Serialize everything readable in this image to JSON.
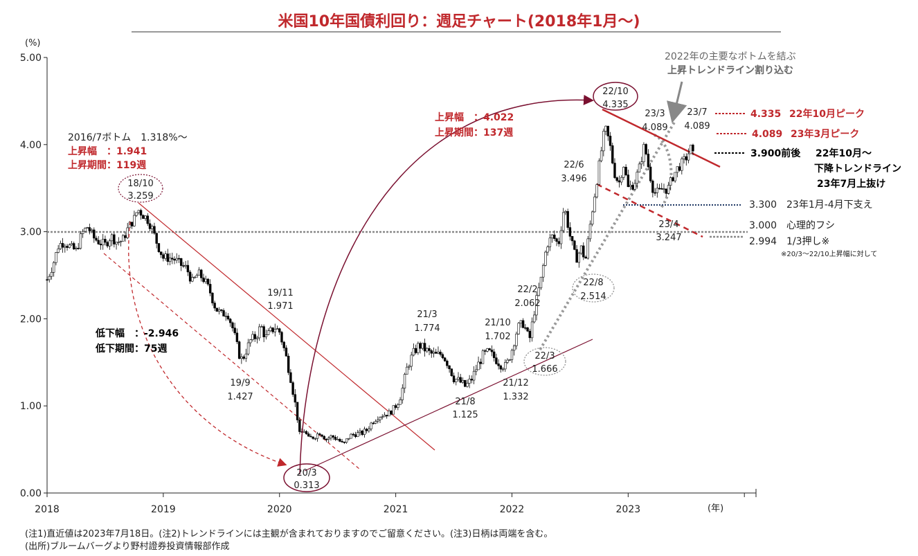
{
  "chart_data": {
    "type": "candlestick",
    "title": "米国10年国債利回り：週足チャート(2018年1月～)",
    "ylabel": "(%)",
    "xlabel": "(年)",
    "ylim": [
      0,
      5
    ],
    "xlim": [
      2018.0,
      2024.1
    ],
    "yticks": [
      "0.00",
      "1.00",
      "2.00",
      "3.00",
      "4.00",
      "5.00"
    ],
    "xticks": [
      {
        "label": "2018",
        "x": 2018.0
      },
      {
        "label": "2019",
        "x": 2019.0
      },
      {
        "label": "2020",
        "x": 2020.0
      },
      {
        "label": "2021",
        "x": 2021.0
      },
      {
        "label": "2022",
        "x": 2022.0
      },
      {
        "label": "2023",
        "x": 2023.0
      }
    ],
    "price_path": [
      [
        2018.0,
        2.45
      ],
      [
        2018.05,
        2.62
      ],
      [
        2018.1,
        2.85
      ],
      [
        2018.15,
        2.88
      ],
      [
        2018.2,
        2.82
      ],
      [
        2018.25,
        2.78
      ],
      [
        2018.3,
        2.98
      ],
      [
        2018.35,
        3.06
      ],
      [
        2018.4,
        2.93
      ],
      [
        2018.45,
        2.88
      ],
      [
        2018.5,
        2.85
      ],
      [
        2018.55,
        2.95
      ],
      [
        2018.6,
        2.88
      ],
      [
        2018.65,
        2.9
      ],
      [
        2018.7,
        3.05
      ],
      [
        2018.75,
        3.15
      ],
      [
        2018.78,
        3.259
      ],
      [
        2018.82,
        3.2
      ],
      [
        2018.86,
        3.15
      ],
      [
        2018.9,
        3.05
      ],
      [
        2018.95,
        2.85
      ],
      [
        2019.0,
        2.7
      ],
      [
        2019.05,
        2.7
      ],
      [
        2019.1,
        2.68
      ],
      [
        2019.15,
        2.62
      ],
      [
        2019.2,
        2.58
      ],
      [
        2019.25,
        2.42
      ],
      [
        2019.3,
        2.52
      ],
      [
        2019.35,
        2.45
      ],
      [
        2019.4,
        2.32
      ],
      [
        2019.45,
        2.12
      ],
      [
        2019.5,
        2.05
      ],
      [
        2019.55,
        2.08
      ],
      [
        2019.6,
        1.88
      ],
      [
        2019.65,
        1.6
      ],
      [
        2019.68,
        1.52
      ],
      [
        2019.7,
        1.6
      ],
      [
        2019.75,
        1.75
      ],
      [
        2019.8,
        1.8
      ],
      [
        2019.84,
        1.92
      ],
      [
        2019.88,
        1.78
      ],
      [
        2019.92,
        1.85
      ],
      [
        2019.96,
        1.9
      ],
      [
        2020.0,
        1.85
      ],
      [
        2020.05,
        1.6
      ],
      [
        2020.1,
        1.3
      ],
      [
        2020.15,
        0.9
      ],
      [
        2020.18,
        0.6
      ],
      [
        2020.2,
        0.75
      ],
      [
        2020.25,
        0.62
      ],
      [
        2020.3,
        0.65
      ],
      [
        2020.35,
        0.7
      ],
      [
        2020.4,
        0.62
      ],
      [
        2020.45,
        0.65
      ],
      [
        2020.5,
        0.62
      ],
      [
        2020.55,
        0.55
      ],
      [
        2020.6,
        0.65
      ],
      [
        2020.65,
        0.68
      ],
      [
        2020.7,
        0.68
      ],
      [
        2020.75,
        0.72
      ],
      [
        2020.8,
        0.82
      ],
      [
        2020.85,
        0.88
      ],
      [
        2020.9,
        0.9
      ],
      [
        2020.95,
        0.92
      ],
      [
        2021.0,
        1.0
      ],
      [
        2021.05,
        1.15
      ],
      [
        2021.1,
        1.45
      ],
      [
        2021.15,
        1.6
      ],
      [
        2021.2,
        1.7
      ],
      [
        2021.25,
        1.65
      ],
      [
        2021.3,
        1.6
      ],
      [
        2021.35,
        1.58
      ],
      [
        2021.4,
        1.6
      ],
      [
        2021.45,
        1.48
      ],
      [
        2021.5,
        1.32
      ],
      [
        2021.55,
        1.28
      ],
      [
        2021.6,
        1.22
      ],
      [
        2021.65,
        1.3
      ],
      [
        2021.7,
        1.45
      ],
      [
        2021.75,
        1.58
      ],
      [
        2021.8,
        1.62
      ],
      [
        2021.85,
        1.55
      ],
      [
        2021.9,
        1.48
      ],
      [
        2021.95,
        1.45
      ],
      [
        2022.0,
        1.65
      ],
      [
        2022.05,
        1.9
      ],
      [
        2022.1,
        1.95
      ],
      [
        2022.15,
        1.75
      ],
      [
        2022.2,
        2.15
      ],
      [
        2022.25,
        2.45
      ],
      [
        2022.3,
        2.85
      ],
      [
        2022.35,
        2.95
      ],
      [
        2022.4,
        2.85
      ],
      [
        2022.45,
        3.3
      ],
      [
        2022.5,
        2.95
      ],
      [
        2022.55,
        2.68
      ],
      [
        2022.6,
        2.82
      ],
      [
        2022.63,
        2.65
      ],
      [
        2022.68,
        3.15
      ],
      [
        2022.72,
        3.5
      ],
      [
        2022.76,
        3.85
      ],
      [
        2022.8,
        4.2
      ],
      [
        2022.84,
        4.02
      ],
      [
        2022.88,
        3.68
      ],
      [
        2022.92,
        3.55
      ],
      [
        2022.96,
        3.78
      ],
      [
        2023.0,
        3.5
      ],
      [
        2023.05,
        3.55
      ],
      [
        2023.1,
        3.75
      ],
      [
        2023.14,
        4.0
      ],
      [
        2023.18,
        3.7
      ],
      [
        2023.22,
        3.45
      ],
      [
        2023.26,
        3.45
      ],
      [
        2023.3,
        3.5
      ],
      [
        2023.34,
        3.48
      ],
      [
        2023.38,
        3.62
      ],
      [
        2023.42,
        3.72
      ],
      [
        2023.46,
        3.78
      ],
      [
        2023.5,
        3.85
      ],
      [
        2023.54,
        3.96
      ],
      [
        2023.57,
        3.82
      ]
    ],
    "annotations": [
      {
        "label": "18/10",
        "value": "3.259",
        "date": 2018.78,
        "y": 3.259
      },
      {
        "label": "19/9",
        "value": "1.427",
        "date": 2019.68,
        "y": 1.427
      },
      {
        "label": "19/11",
        "value": "1.971",
        "date": 2019.84,
        "y": 1.971
      },
      {
        "label": "20/3",
        "value": "0.313",
        "date": 2020.18,
        "y": 0.313
      },
      {
        "label": "21/3",
        "value": "1.774",
        "date": 2021.22,
        "y": 1.774
      },
      {
        "label": "21/8",
        "value": "1.125",
        "date": 2021.6,
        "y": 1.125
      },
      {
        "label": "21/10",
        "value": "1.702",
        "date": 2021.8,
        "y": 1.702
      },
      {
        "label": "21/12",
        "value": "1.332",
        "date": 2021.95,
        "y": 1.332
      },
      {
        "label": "22/2",
        "value": "2.062",
        "date": 2022.1,
        "y": 2.062
      },
      {
        "label": "22/3",
        "value": "1.666",
        "date": 2022.2,
        "y": 1.666
      },
      {
        "label": "22/6",
        "value": "3.496",
        "date": 2022.45,
        "y": 3.496
      },
      {
        "label": "22/8",
        "value": "2.514",
        "date": 2022.63,
        "y": 2.514
      },
      {
        "label": "22/10",
        "value": "4.335",
        "date": 2022.8,
        "y": 4.335
      },
      {
        "label": "23/3",
        "value": "4.089",
        "date": 2023.14,
        "y": 4.089
      },
      {
        "label": "23/4",
        "value": "3.247",
        "date": 2023.26,
        "y": 3.247
      },
      {
        "label": "23/7",
        "value": "4.089",
        "date": 2023.54,
        "y": 4.089
      }
    ],
    "text_blocks": {
      "bottom_2016": "2016/7ボトム　1.318%～",
      "rise1_amount": "上昇幅　：1.941",
      "rise1_period": "上昇期間：119週",
      "fall_amount": "低下幅　：-2.946",
      "fall_period": "低下期間：75週",
      "rise2_amount": "上昇幅　：4.022",
      "rise2_period": "上昇期間：137週",
      "trend_note_1": "2022年の主要なボトムを結ぶ",
      "trend_note_2": "上昇トレンドライン割り込む"
    },
    "level_labels": [
      {
        "value": "4.335",
        "text": "22年10月ピーク",
        "color": "#c0282c"
      },
      {
        "value": "4.089",
        "text": "23年3月ピーク",
        "color": "#c0282c"
      },
      {
        "value": "3.900前後",
        "text": "22年10月～",
        "color": "#000000"
      },
      {
        "value": "",
        "text": "下降トレンドライン",
        "color": "#000000"
      },
      {
        "value": "",
        "text": "23年7月上抜け",
        "color": "#000000"
      },
      {
        "value": "3.300",
        "text": "23年1月-4月下支え",
        "color": "#222222"
      },
      {
        "value": "3.000",
        "text": "心理的フシ",
        "color": "#222222"
      },
      {
        "value": "2.994",
        "text": "1/3押し※",
        "color": "#222222"
      },
      {
        "value": "",
        "text": "※20/3～22/10上昇幅に対して",
        "color": "#222222"
      }
    ],
    "notes": [
      "(注1)直近値は2023年7月18日。(注2)トレンドラインには主観が含まれておりますのでご留意ください。(注3)日柄は両端を含む。",
      "(出所)ブルームバーグより野村證券投資情報部作成"
    ],
    "colors": {
      "accent_red": "#c0282c",
      "dark_red": "#7a1030",
      "navy": "#1f3864",
      "gray": "#888888",
      "candle_up": "#ffffff",
      "candle_down": "#000000"
    }
  }
}
